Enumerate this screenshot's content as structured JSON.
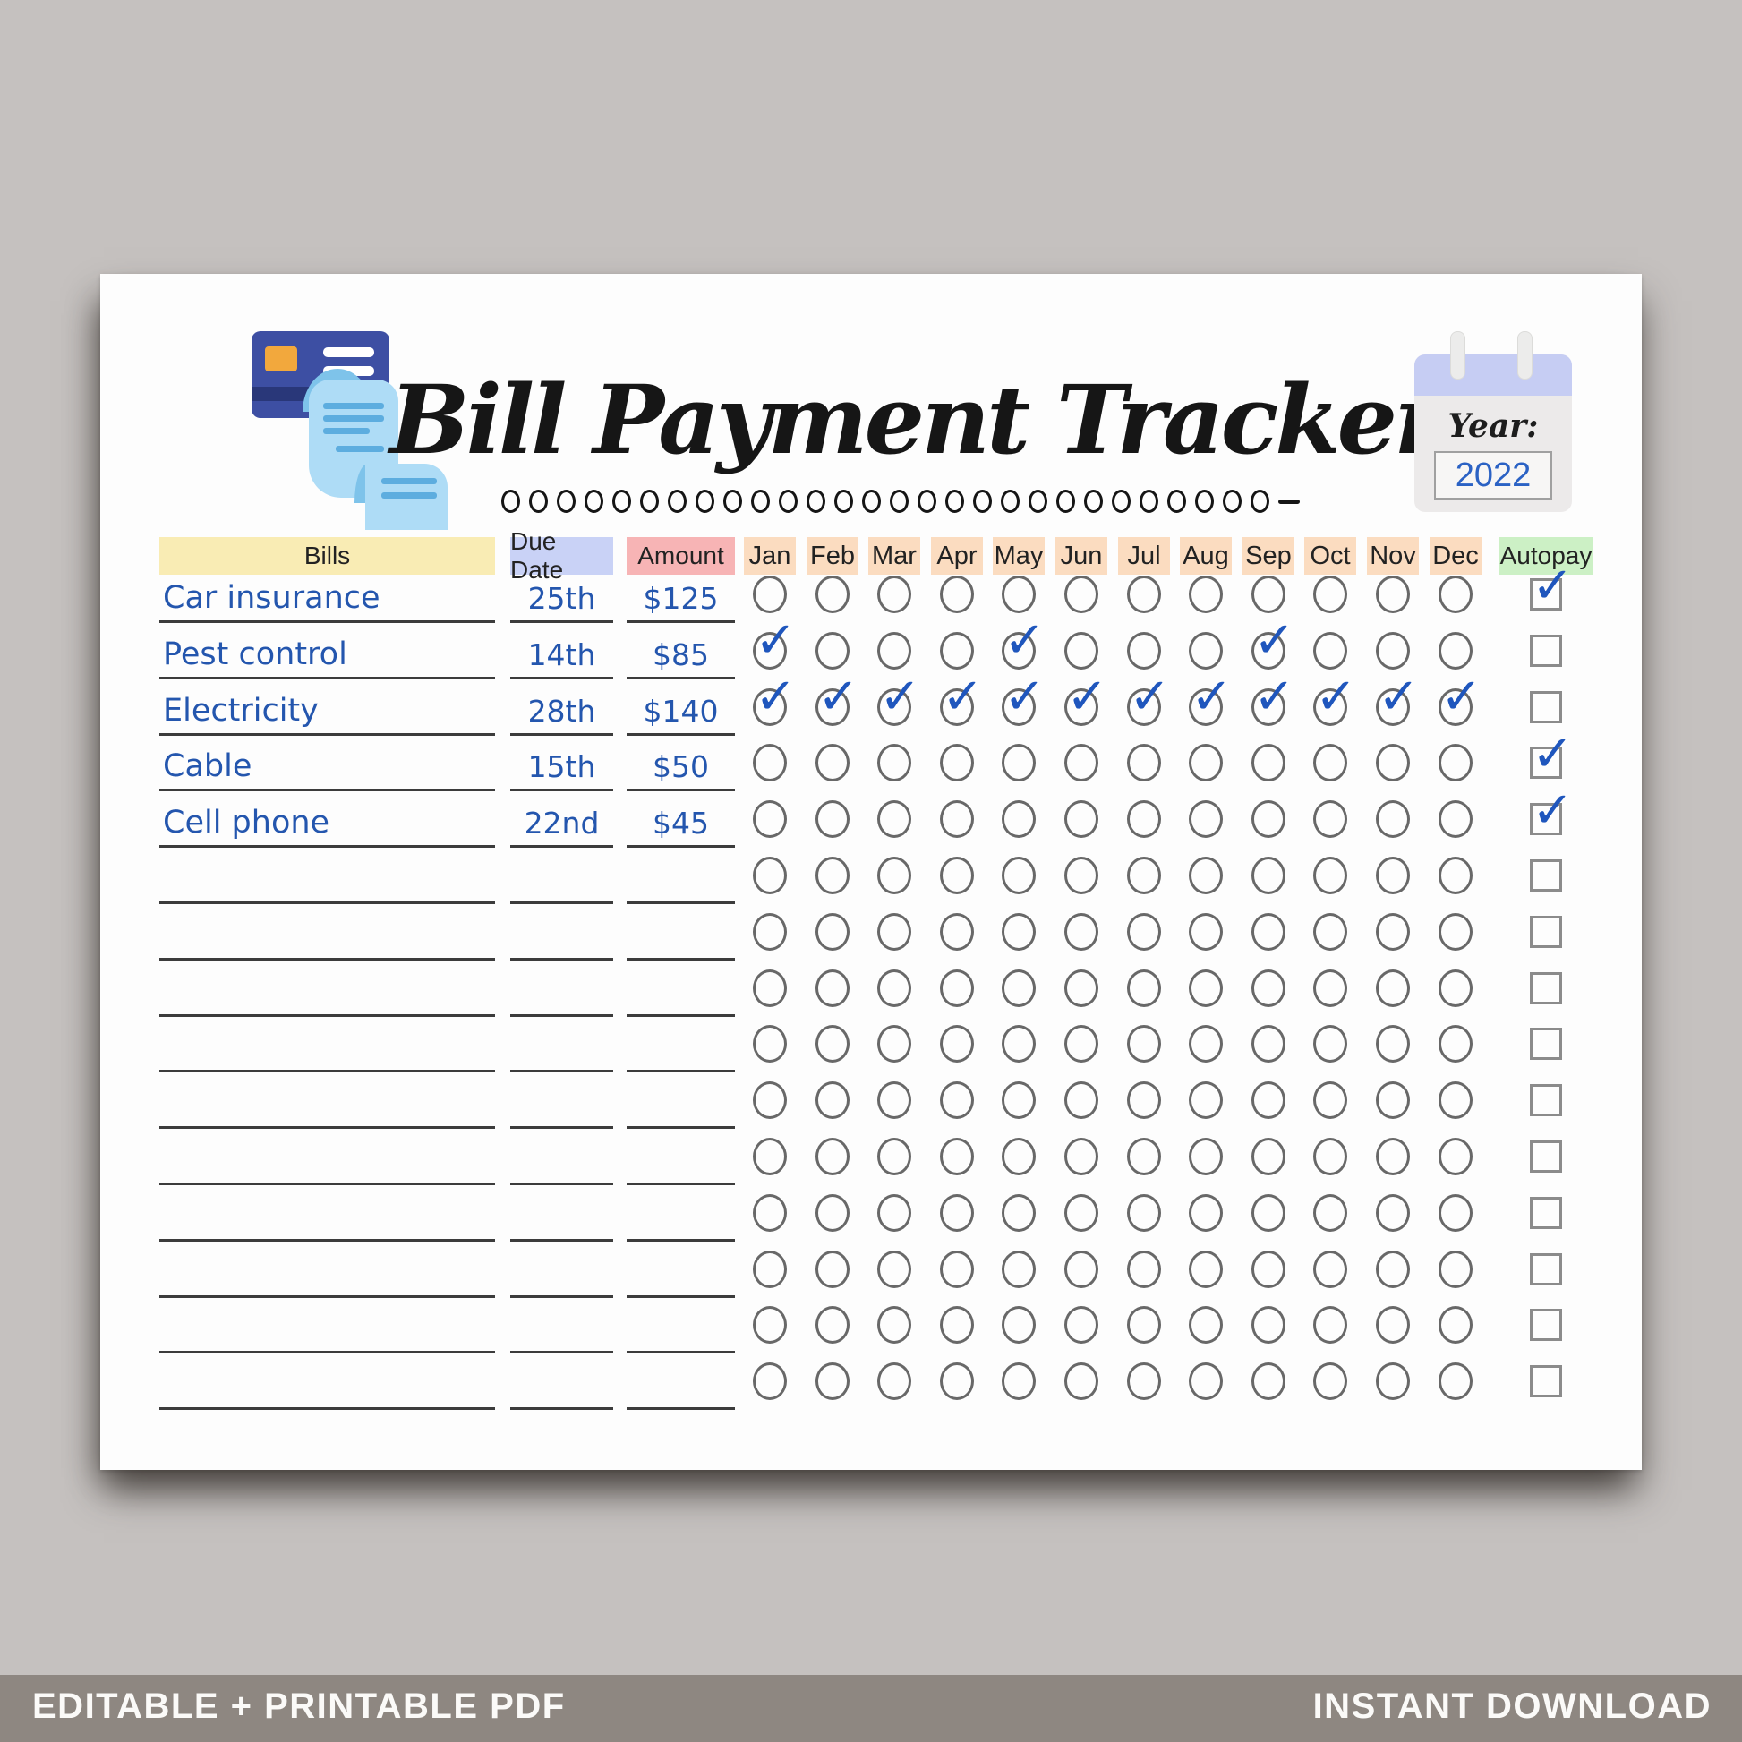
{
  "listing": {
    "footer_left": "EDITABLE + PRINTABLE PDF",
    "footer_right": "INSTANT DOWNLOAD"
  },
  "tracker": {
    "title": "Bill Payment Tracker",
    "year": {
      "label": "Year:",
      "value": "2022"
    },
    "headers": {
      "bills": "Bills",
      "due_date": "Due Date",
      "amount": "Amount",
      "autopay": "Autopay"
    },
    "months": [
      "Jan",
      "Feb",
      "Mar",
      "Apr",
      "May",
      "Jun",
      "Jul",
      "Aug",
      "Sep",
      "Oct",
      "Nov",
      "Dec"
    ],
    "rows": [
      {
        "bill": "Car insurance",
        "due": "25th",
        "amount": "$125",
        "paid_months": [],
        "autopay": true
      },
      {
        "bill": "Pest control",
        "due": "14th",
        "amount": "$85",
        "paid_months": [
          "Jan",
          "May",
          "Sep"
        ],
        "autopay": false
      },
      {
        "bill": "Electricity",
        "due": "28th",
        "amount": "$140",
        "paid_months": [
          "Jan",
          "Feb",
          "Mar",
          "Apr",
          "May",
          "Jun",
          "Jul",
          "Aug",
          "Sep",
          "Oct",
          "Nov",
          "Dec"
        ],
        "autopay": false
      },
      {
        "bill": "Cable",
        "due": "15th",
        "amount": "$50",
        "paid_months": [],
        "autopay": true
      },
      {
        "bill": "Cell phone",
        "due": "22nd",
        "amount": "$45",
        "paid_months": [],
        "autopay": true
      },
      {
        "bill": "",
        "due": "",
        "amount": "",
        "paid_months": [],
        "autopay": false
      },
      {
        "bill": "",
        "due": "",
        "amount": "",
        "paid_months": [],
        "autopay": false
      },
      {
        "bill": "",
        "due": "",
        "amount": "",
        "paid_months": [],
        "autopay": false
      },
      {
        "bill": "",
        "due": "",
        "amount": "",
        "paid_months": [],
        "autopay": false
      },
      {
        "bill": "",
        "due": "",
        "amount": "",
        "paid_months": [],
        "autopay": false
      },
      {
        "bill": "",
        "due": "",
        "amount": "",
        "paid_months": [],
        "autopay": false
      },
      {
        "bill": "",
        "due": "",
        "amount": "",
        "paid_months": [],
        "autopay": false
      },
      {
        "bill": "",
        "due": "",
        "amount": "",
        "paid_months": [],
        "autopay": false
      },
      {
        "bill": "",
        "due": "",
        "amount": "",
        "paid_months": [],
        "autopay": false
      },
      {
        "bill": "",
        "due": "",
        "amount": "",
        "paid_months": [],
        "autopay": false
      }
    ]
  },
  "colors": {
    "bills_header": "#f9ecb4",
    "due_header": "#c9d2f6",
    "amount_header": "#f7b4b5",
    "month_header": "#fbdcc0",
    "autopay_header": "#ccf0c5",
    "handwriting_blue": "#2456ae",
    "check_blue": "#1f56bd",
    "footer_band": "#8e8781",
    "background": "#c5c1bf"
  }
}
